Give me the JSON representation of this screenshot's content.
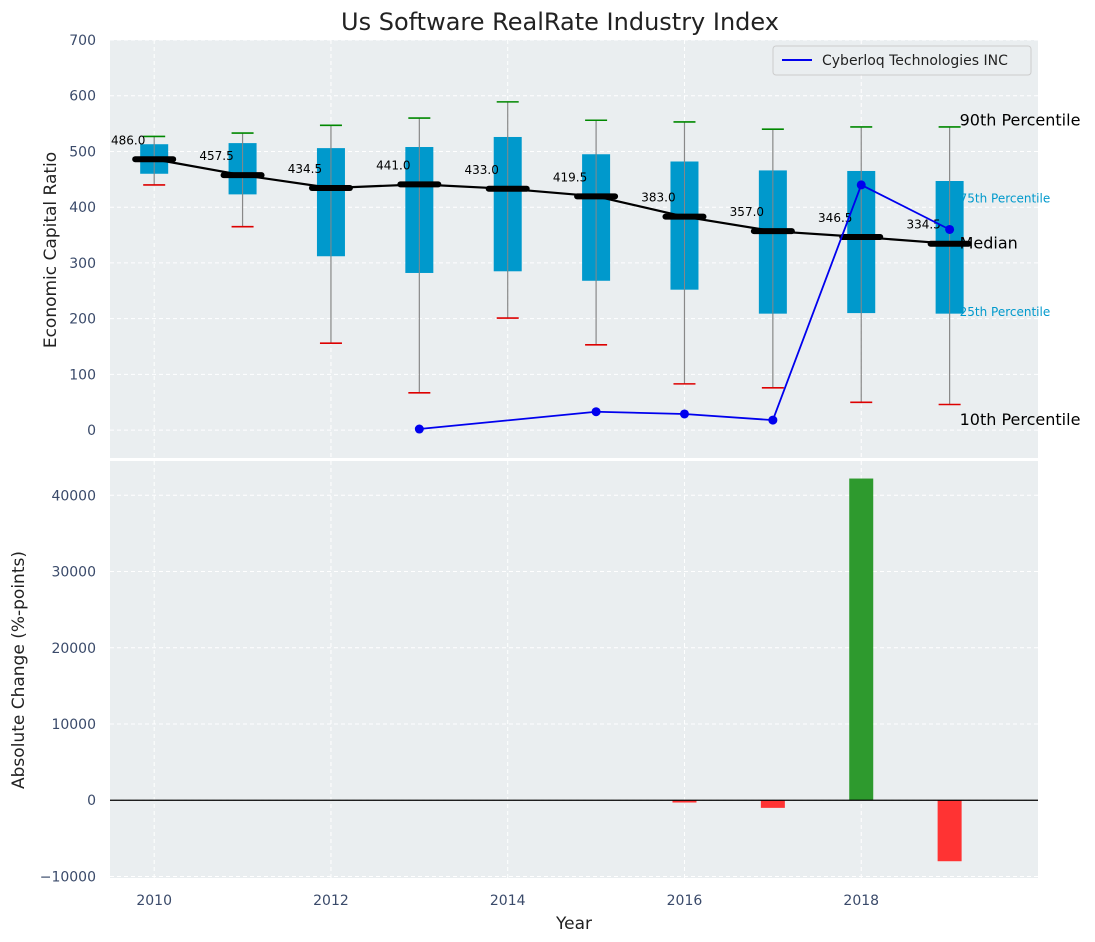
{
  "chart_data": [
    {
      "type": "box",
      "title": "Us Software RealRate Industry Index",
      "ylabel": "Economic Capital Ratio",
      "ylim": [
        -50,
        700
      ],
      "yticks": [
        0,
        100,
        200,
        300,
        400,
        500,
        600,
        700
      ],
      "grid": true,
      "legend": {
        "position": "top-right",
        "entries": [
          "Cyberloq Technologies INC"
        ]
      },
      "years": [
        2010,
        2011,
        2012,
        2013,
        2014,
        2015,
        2016,
        2017,
        2018,
        2019
      ],
      "p10": [
        440,
        365,
        156,
        67,
        201,
        153,
        83,
        76,
        50,
        46
      ],
      "p25": [
        460,
        423,
        312,
        282,
        285,
        268,
        252,
        209,
        210,
        209
      ],
      "median": [
        486.0,
        457.5,
        434.5,
        441.0,
        433.0,
        419.5,
        383.0,
        357.0,
        346.5,
        334.5
      ],
      "median_labels": [
        "486.0",
        "457.5",
        "434.5",
        "441.0",
        "433.0",
        "419.5",
        "383.0",
        "357.0",
        "346.5",
        "334.5"
      ],
      "p75": [
        513,
        515,
        506,
        508,
        526,
        495,
        482,
        466,
        465,
        447
      ],
      "p90": [
        527,
        533,
        547,
        560,
        589,
        556,
        553,
        540,
        544,
        544
      ],
      "company_series": {
        "name": "Cyberloq Technologies INC",
        "x": [
          2013,
          2015,
          2016,
          2017,
          2018,
          2019
        ],
        "y": [
          2,
          33,
          29,
          18,
          440,
          360
        ]
      },
      "band_labels": {
        "p90": "90th Percentile",
        "p75": "75th Percentile",
        "median": "Median",
        "p25": "25th Percentile",
        "p10": "10th Percentile"
      },
      "colors": {
        "box": "#0099cc",
        "median": "#000000",
        "company": "#0000ee",
        "p90_cap": "#008800",
        "p10_cap": "#dd0000",
        "whisker": "#888888"
      }
    },
    {
      "type": "bar",
      "xlabel": "Year",
      "ylabel": "Absolute Change (%-points)",
      "ylim": [
        -10200,
        44500
      ],
      "yticks": [
        -10000,
        0,
        10000,
        20000,
        30000,
        40000
      ],
      "ytick_labels": [
        "−10000",
        "0",
        "10000",
        "20000",
        "30000",
        "40000"
      ],
      "xticks": [
        2010,
        2012,
        2014,
        2016,
        2018
      ],
      "grid": true,
      "x": [
        2016,
        2017,
        2018,
        2019
      ],
      "values": [
        -300,
        -1000,
        42200,
        -8000
      ],
      "colors": {
        "positive": "#2e9a2e",
        "negative": "#ff3333"
      }
    }
  ]
}
